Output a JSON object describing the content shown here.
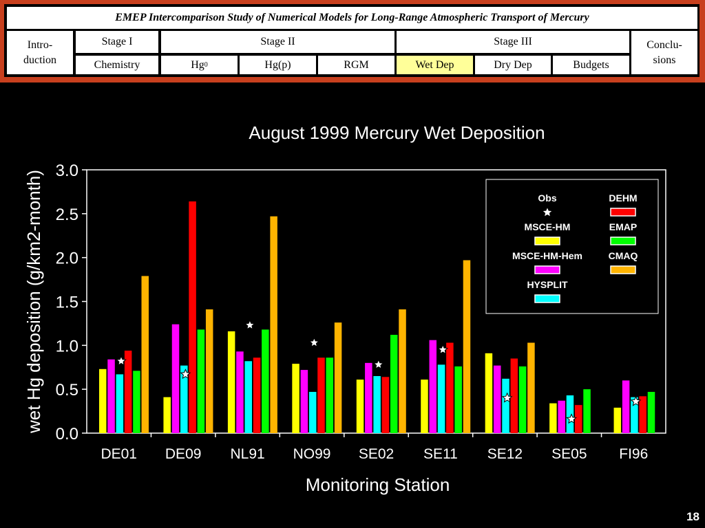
{
  "header": {
    "title": "EMEP Intercomparison Study of Numerical Models for Long-Range Atmospheric Transport of Mercury",
    "nav": {
      "introduction": "Intro-\nduction",
      "stage1": "Stage I",
      "stage2": "Stage II",
      "stage3": "Stage III",
      "conclusions": "Conclu-\nsions",
      "chemistry": "Chemistry",
      "hg0_base": "Hg",
      "hg0_sup": "0",
      "hgp": "Hg(p)",
      "rgm": "RGM",
      "wetdep": "Wet Dep",
      "drydep": "Dry Dep",
      "budgets": "Budgets"
    },
    "active_color": "#ffff99",
    "frame_color": "#c8401e"
  },
  "page_number": "18",
  "chart_data": {
    "type": "bar",
    "title": "August 1999 Mercury Wet Deposition",
    "xlabel": "Monitoring Station",
    "ylabel": "wet Hg deposition (g/km2-month)",
    "ylim": [
      0,
      3.0
    ],
    "yticks": [
      "0.0",
      "0.5",
      "1.0",
      "1.5",
      "2.0",
      "2.5",
      "3.0"
    ],
    "grid": false,
    "legend_position": "top-right",
    "categories": [
      "DE01",
      "DE09",
      "NL91",
      "NO99",
      "SE02",
      "SE11",
      "SE12",
      "SE05",
      "FI96"
    ],
    "series": [
      {
        "name": "MSCE-HM",
        "color": "#ffff00",
        "values": [
          0.73,
          0.41,
          1.16,
          0.79,
          0.61,
          0.61,
          0.91,
          0.34,
          0.29
        ]
      },
      {
        "name": "MSCE-HM-Hem",
        "color": "#ff00ff",
        "values": [
          0.84,
          1.24,
          0.93,
          0.72,
          0.8,
          1.06,
          0.77,
          0.37,
          0.6
        ]
      },
      {
        "name": "HYSPLIT",
        "color": "#00ffff",
        "values": [
          0.67,
          0.77,
          0.82,
          0.47,
          0.65,
          0.78,
          0.62,
          0.43,
          0.41
        ]
      },
      {
        "name": "DEHM",
        "color": "#ff0000",
        "values": [
          0.94,
          2.64,
          0.86,
          0.86,
          0.64,
          1.03,
          0.85,
          0.32,
          0.42
        ]
      },
      {
        "name": "EMAP",
        "color": "#00ff00",
        "values": [
          0.71,
          1.18,
          1.18,
          0.86,
          1.12,
          0.76,
          0.76,
          0.5,
          0.47
        ]
      },
      {
        "name": "CMAQ",
        "color": "#ffb400",
        "values": [
          1.79,
          1.41,
          2.47,
          1.26,
          1.41,
          1.97,
          1.03,
          null,
          null
        ]
      }
    ],
    "obs": {
      "name": "Obs",
      "values": [
        0.82,
        0.67,
        1.23,
        1.03,
        0.78,
        0.95,
        0.4,
        0.16,
        0.36
      ]
    },
    "legend": [
      {
        "name": "Obs",
        "kind": "star"
      },
      {
        "name": "DEHM",
        "kind": "bar",
        "color": "#ff0000"
      },
      {
        "name": "MSCE-HM",
        "kind": "bar",
        "color": "#ffff00"
      },
      {
        "name": "EMAP",
        "kind": "bar",
        "color": "#00ff00"
      },
      {
        "name": "MSCE-HM-Hem",
        "kind": "bar",
        "color": "#ff00ff"
      },
      {
        "name": "CMAQ",
        "kind": "bar",
        "color": "#ffb400"
      },
      {
        "name": "HYSPLIT",
        "kind": "bar",
        "color": "#00ffff"
      }
    ]
  }
}
